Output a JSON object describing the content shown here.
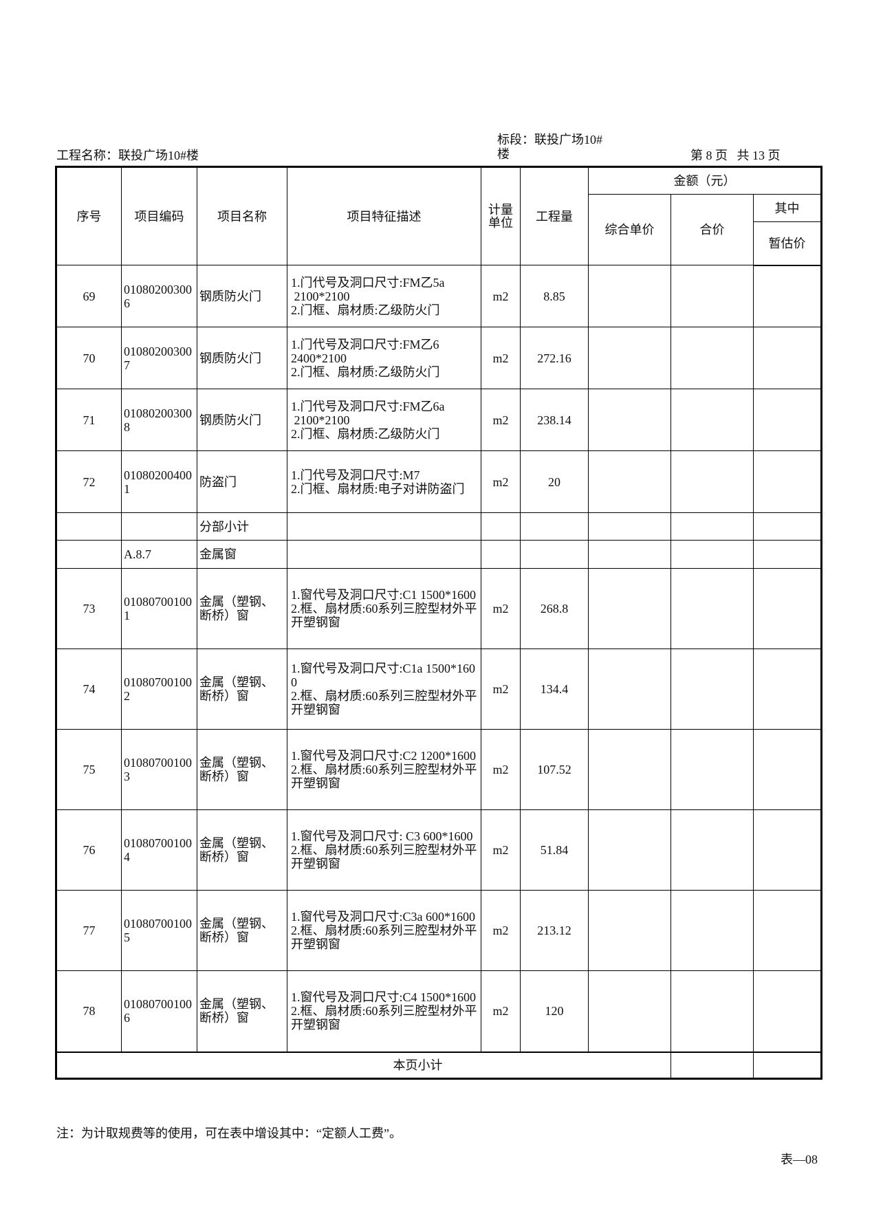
{
  "header": {
    "project_name": "工程名称：联投广场10#楼",
    "section_line1": "标段：联投广场10#",
    "section_line2": "楼",
    "page_info": "第 8 页   共 13 页"
  },
  "columns": {
    "seq": "序号",
    "code": "项目编码",
    "name": "项目名称",
    "desc": "项目特征描述",
    "unit": "计量单位",
    "qty": "工程量",
    "amount": "金额（元）",
    "unit_price": "综合单价",
    "total": "合价",
    "of_which": "其中",
    "provisional": "暂估价"
  },
  "rows": [
    {
      "seq": "69",
      "code": "010802003006",
      "name": "钢质防火门",
      "desc": "1.门代号及洞口尺寸:FM乙5a\n 2100*2100\n2.门框、扇材质:乙级防火门",
      "unit": "m2",
      "qty": "8.85"
    },
    {
      "seq": "70",
      "code": "010802003007",
      "name": "钢质防火门",
      "desc": "1.门代号及洞口尺寸:FM乙6\n2400*2100\n2.门框、扇材质:乙级防火门",
      "unit": "m2",
      "qty": "272.16"
    },
    {
      "seq": "71",
      "code": "010802003008",
      "name": "钢质防火门",
      "desc": "1.门代号及洞口尺寸:FM乙6a\n 2100*2100\n2.门框、扇材质:乙级防火门",
      "unit": "m2",
      "qty": "238.14"
    },
    {
      "seq": "72",
      "code": "010802004001",
      "name": "防盗门",
      "desc": "1.门代号及洞口尺寸:M7\n2.门框、扇材质:电子对讲防盗门",
      "unit": "m2",
      "qty": "20"
    },
    {
      "seq": "",
      "code": "",
      "name": "分部小计",
      "desc": "",
      "unit": "",
      "qty": "",
      "kind": "sub"
    },
    {
      "seq": "",
      "code": "A.8.7",
      "name": "金属窗",
      "desc": "",
      "unit": "",
      "qty": "",
      "kind": "sub"
    },
    {
      "seq": "73",
      "code": "010807001001",
      "name": "金属（塑钢、断桥）窗",
      "desc": "1.窗代号及洞口尺寸:C1 1500*1600\n2.框、扇材质:60系列三腔型材外平开塑钢窗",
      "unit": "m2",
      "qty": "268.8"
    },
    {
      "seq": "74",
      "code": "010807001002",
      "name": "金属（塑钢、断桥）窗",
      "desc": "1.窗代号及洞口尺寸:C1a 1500*1600\n2.框、扇材质:60系列三腔型材外平开塑钢窗",
      "unit": "m2",
      "qty": "134.4"
    },
    {
      "seq": "75",
      "code": "010807001003",
      "name": "金属（塑钢、断桥）窗",
      "desc": "1.窗代号及洞口尺寸:C2 1200*1600\n2.框、扇材质:60系列三腔型材外平开塑钢窗",
      "unit": "m2",
      "qty": "107.52"
    },
    {
      "seq": "76",
      "code": "010807001004",
      "name": "金属（塑钢、断桥）窗",
      "desc": "1.窗代号及洞口尺寸: C3 600*1600\n2.框、扇材质:60系列三腔型材外平开塑钢窗",
      "unit": "m2",
      "qty": "51.84"
    },
    {
      "seq": "77",
      "code": "010807001005",
      "name": "金属（塑钢、断桥）窗",
      "desc": "1.窗代号及洞口尺寸:C3a 600*1600\n2.框、扇材质:60系列三腔型材外平开塑钢窗",
      "unit": "m2",
      "qty": "213.12"
    },
    {
      "seq": "78",
      "code": "010807001006",
      "name": "金属（塑钢、断桥）窗",
      "desc": "1.窗代号及洞口尺寸:C4 1500*1600\n2.框、扇材质:60系列三腔型材外平开塑钢窗",
      "unit": "m2",
      "qty": "120"
    }
  ],
  "page_subtotal": "本页小计",
  "footer": {
    "note": "注：为计取规费等的使用，可在表中增设其中：“定额人工费”。",
    "form_no": "表—08"
  }
}
